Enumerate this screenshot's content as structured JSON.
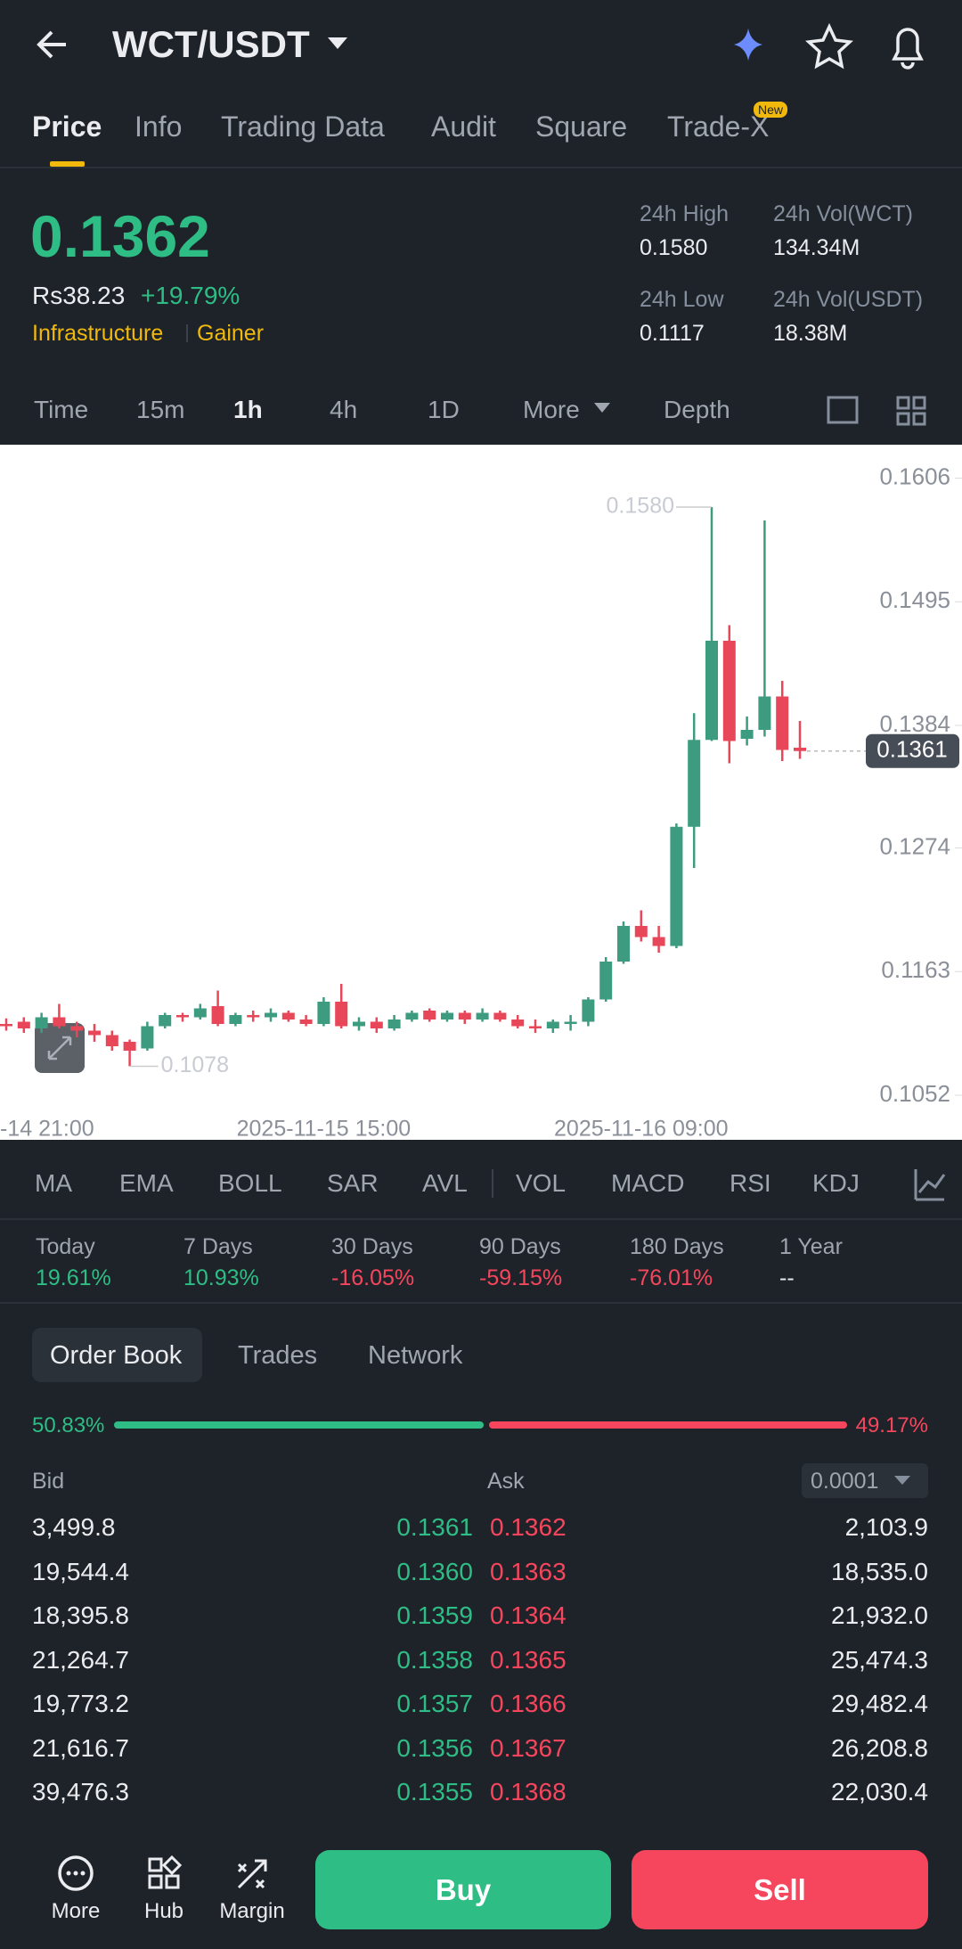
{
  "header": {
    "title": "WCT/USDT"
  },
  "tabs": [
    "Price",
    "Info",
    "Trading Data",
    "Audit",
    "Square",
    "Trade-X"
  ],
  "new_badge": "New",
  "ticker": {
    "price": "0.1362",
    "fiat": "Rs38.23",
    "change": "+19.79%",
    "tags": [
      "Infrastructure",
      "Gainer"
    ],
    "stats": [
      {
        "label": "24h High",
        "value": "0.1580"
      },
      {
        "label": "24h Vol(WCT)",
        "value": "134.34M"
      },
      {
        "label": "24h Low",
        "value": "0.1117"
      },
      {
        "label": "24h Vol(USDT)",
        "value": "18.38M"
      }
    ]
  },
  "intervals": [
    "Time",
    "15m",
    "1h",
    "4h",
    "1D",
    "More",
    "Depth"
  ],
  "chart_data": {
    "type": "candlestick",
    "up_color": "#3d9b80",
    "down_color": "#e8475a",
    "grid": false,
    "categories": [
      "-14 21:00",
      null,
      null,
      null,
      null,
      null,
      null,
      null,
      null,
      null,
      null,
      null,
      null,
      null,
      null,
      null,
      null,
      null,
      "2025-11-15 15:00",
      null,
      null,
      null,
      null,
      null,
      null,
      null,
      null,
      null,
      null,
      null,
      null,
      null,
      null,
      null,
      null,
      null,
      "2025-11-16 09:00",
      null,
      null,
      null,
      null,
      null,
      null,
      null,
      null,
      null
    ],
    "open": [
      0.1116,
      0.1118,
      0.1112,
      0.1122,
      0.1114,
      0.111,
      0.1106,
      0.11,
      0.1094,
      0.1114,
      0.1124,
      0.1122,
      0.1132,
      0.1116,
      0.1124,
      0.1122,
      0.1126,
      0.112,
      0.1116,
      0.1136,
      0.1114,
      0.1118,
      0.1112,
      0.112,
      0.1128,
      0.112,
      0.1126,
      0.112,
      0.1126,
      0.112,
      0.1114,
      0.1112,
      0.1118,
      0.1118,
      0.1138,
      0.1172,
      0.1204,
      0.1194,
      0.1186,
      0.1293,
      0.1371,
      0.146,
      0.1372,
      0.138,
      0.141,
      0.1364
    ],
    "high": [
      0.1121,
      0.1122,
      0.1126,
      0.1134,
      0.1118,
      0.1116,
      0.111,
      0.1102,
      0.1118,
      0.1126,
      0.1126,
      0.1134,
      0.1146,
      0.1126,
      0.1128,
      0.113,
      0.1128,
      0.1124,
      0.114,
      0.1152,
      0.1122,
      0.1122,
      0.1124,
      0.1128,
      0.113,
      0.1128,
      0.1128,
      0.113,
      0.1128,
      0.1124,
      0.112,
      0.112,
      0.1124,
      0.114,
      0.1176,
      0.1208,
      0.1218,
      0.1204,
      0.1296,
      0.1395,
      0.158,
      0.1474,
      0.1392,
      0.1568,
      0.1424,
      0.1388
    ],
    "low": [
      0.111,
      0.1108,
      0.1108,
      0.1112,
      0.1104,
      0.11,
      0.1092,
      0.1078,
      0.1092,
      0.1112,
      0.1118,
      0.112,
      0.1114,
      0.1114,
      0.1118,
      0.1118,
      0.1118,
      0.1114,
      0.1114,
      0.1112,
      0.111,
      0.1108,
      0.111,
      0.1118,
      0.1118,
      0.1118,
      0.1116,
      0.1118,
      0.1118,
      0.1112,
      0.1108,
      0.1108,
      0.111,
      0.1114,
      0.1136,
      0.117,
      0.119,
      0.118,
      0.1184,
      0.1256,
      0.137,
      0.135,
      0.1366,
      0.1374,
      0.1352,
      0.1354
    ],
    "close": [
      0.1114,
      0.1112,
      0.1122,
      0.1114,
      0.111,
      0.1106,
      0.1096,
      0.1092,
      0.1114,
      0.1124,
      0.1122,
      0.113,
      0.1116,
      0.1124,
      0.1122,
      0.1126,
      0.112,
      0.1116,
      0.1136,
      0.1114,
      0.1118,
      0.1112,
      0.112,
      0.1126,
      0.112,
      0.1126,
      0.112,
      0.1126,
      0.112,
      0.1114,
      0.1112,
      0.1118,
      0.1118,
      0.1138,
      0.1172,
      0.1204,
      0.1194,
      0.1186,
      0.1293,
      0.1371,
      0.146,
      0.137,
      0.138,
      0.141,
      0.1362,
      0.1361
    ],
    "ylim": [
      0.1012,
      0.1636
    ],
    "yticks": [
      0.1606,
      0.1495,
      0.1384,
      0.1274,
      0.1163,
      0.1052
    ],
    "annotations": {
      "max_label": "0.1580",
      "min_label": "0.1078",
      "last_price_label": "0.1361"
    }
  },
  "indicators": [
    "MA",
    "EMA",
    "BOLL",
    "SAR",
    "AVL",
    "VOL",
    "MACD",
    "RSI",
    "KDJ"
  ],
  "performance": [
    {
      "label": "Today",
      "value": "19.61%"
    },
    {
      "label": "7 Days",
      "value": "10.93%"
    },
    {
      "label": "30 Days",
      "value": "-16.05%"
    },
    {
      "label": "90 Days",
      "value": "-59.15%"
    },
    {
      "label": "180 Days",
      "value": "-76.01%"
    },
    {
      "label": "1 Year",
      "value": "--"
    }
  ],
  "order_book": {
    "tabs": [
      "Order Book",
      "Trades",
      "Network"
    ],
    "ratio": {
      "values": [
        50.83,
        49.17
      ],
      "value_labels": [
        "50.83%",
        "49.17%"
      ]
    },
    "headers": [
      "Bid",
      "Ask"
    ],
    "precision": "0.0001",
    "rows": [
      [
        "3,499.8",
        "0.1361",
        "0.1362",
        "2,103.9"
      ],
      [
        "19,544.4",
        "0.1360",
        "0.1363",
        "18,535.0"
      ],
      [
        "18,395.8",
        "0.1359",
        "0.1364",
        "21,932.0"
      ],
      [
        "21,264.7",
        "0.1358",
        "0.1365",
        "25,474.3"
      ],
      [
        "19,773.2",
        "0.1357",
        "0.1366",
        "29,482.4"
      ],
      [
        "21,616.7",
        "0.1356",
        "0.1367",
        "26,208.8"
      ],
      [
        "39,476.3",
        "0.1355",
        "0.1368",
        "22,030.4"
      ]
    ]
  },
  "footer": {
    "nav": [
      "More",
      "Hub",
      "Margin"
    ],
    "buy": "Buy",
    "sell": "Sell"
  }
}
